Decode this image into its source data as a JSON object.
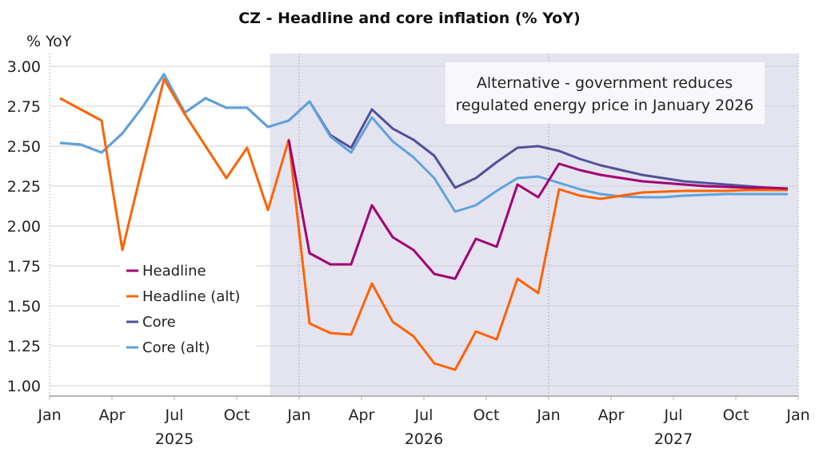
{
  "chart_data": {
    "type": "line",
    "title": "CZ - Headline and core inflation (% YoY)",
    "ylabel": "% YoY",
    "xlabel": "",
    "ylim": [
      1.0,
      3.0
    ],
    "yticks": [
      "3.00",
      "2.75",
      "2.50",
      "2.25",
      "2.00",
      "1.75",
      "1.50",
      "1.25",
      "1.00"
    ],
    "ytick_values": [
      3.0,
      2.75,
      2.5,
      2.25,
      2.0,
      1.75,
      1.5,
      1.25,
      1.0
    ],
    "xtick_labels": [
      "Jan",
      "Apr",
      "Jul",
      "Oct",
      "Jan",
      "Apr",
      "Jul",
      "Oct",
      "Jan",
      "Apr",
      "Jul",
      "Oct",
      "Jan"
    ],
    "year_labels": [
      "2025",
      "2026",
      "2027"
    ],
    "x_start": "2025-01",
    "months": 36,
    "grid": true,
    "shaded_from_month_index": 10.6,
    "annotation": [
      "Alternative - government reduces",
      "regulated energy price in January 2026"
    ],
    "legend_position": "lower-left",
    "series": [
      {
        "name": "Headline",
        "color": "#a3006f",
        "start_index": 11,
        "values": [
          2.54,
          1.83,
          1.76,
          1.76,
          2.13,
          1.93,
          1.85,
          1.7,
          1.67,
          1.92,
          1.87,
          2.26,
          2.18,
          2.39,
          2.35,
          2.32,
          2.3,
          2.28,
          2.27,
          2.26,
          2.25,
          2.245,
          2.24,
          2.24,
          2.235
        ]
      },
      {
        "name": "Headline (alt)",
        "color": "#ff6200",
        "start_index": 0,
        "values": [
          2.8,
          2.73,
          2.66,
          1.85,
          2.39,
          2.92,
          2.7,
          2.5,
          2.3,
          2.49,
          2.1,
          2.54,
          1.39,
          1.33,
          1.32,
          1.64,
          1.4,
          1.31,
          1.14,
          1.1,
          1.34,
          1.29,
          1.67,
          1.58,
          2.23,
          2.19,
          2.17,
          2.19,
          2.21,
          2.215,
          2.22,
          2.22,
          2.22,
          2.225,
          2.225,
          2.225
        ]
      },
      {
        "name": "Core",
        "color": "#525199",
        "start_index": 0,
        "values": [
          2.52,
          2.51,
          2.46,
          2.58,
          2.75,
          2.95,
          2.71,
          2.8,
          2.74,
          2.74,
          2.62,
          2.66,
          2.78,
          2.57,
          2.49,
          2.73,
          2.61,
          2.54,
          2.44,
          2.24,
          2.3,
          2.4,
          2.49,
          2.5,
          2.47,
          2.42,
          2.38,
          2.35,
          2.32,
          2.3,
          2.28,
          2.27,
          2.26,
          2.25,
          2.24,
          2.23
        ]
      },
      {
        "name": "Core (alt)",
        "color": "#5fa3d9",
        "start_index": 0,
        "values": [
          2.52,
          2.51,
          2.46,
          2.58,
          2.75,
          2.95,
          2.71,
          2.8,
          2.74,
          2.74,
          2.62,
          2.66,
          2.78,
          2.56,
          2.46,
          2.68,
          2.53,
          2.43,
          2.3,
          2.09,
          2.13,
          2.22,
          2.3,
          2.31,
          2.27,
          2.23,
          2.2,
          2.185,
          2.18,
          2.18,
          2.19,
          2.195,
          2.2,
          2.2,
          2.2,
          2.2
        ]
      }
    ]
  },
  "colors": {
    "shade": "#e4e4f1",
    "grid": "#cfcfd6",
    "axis": "#b5b5b5"
  }
}
